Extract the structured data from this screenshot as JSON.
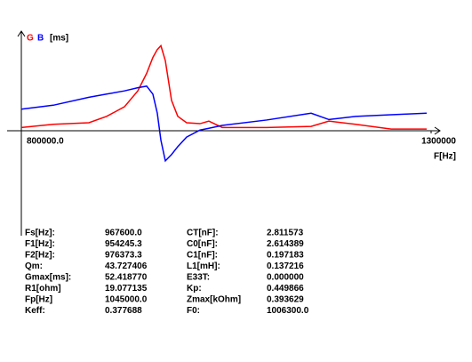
{
  "chart_data": {
    "type": "line",
    "y_label": "[ms]",
    "x_label": "F[Hz]",
    "x": [
      800000,
      839000,
      882400,
      904100,
      925800,
      942100,
      952900,
      960500,
      965900,
      970300,
      975700,
      983300,
      990900,
      1001700,
      1018000,
      1028800,
      1045100,
      1099300,
      1153600,
      1175300,
      1207800,
      1251200,
      1294600
    ],
    "series": [
      {
        "name": "G",
        "color": "#ff0000",
        "values": [
          1,
          3,
          4,
          8,
          14,
          24,
          35,
          45,
          50,
          52.4,
          43,
          18,
          8,
          4,
          3.4,
          5,
          1,
          1,
          1.7,
          5,
          3,
          0,
          0
        ]
      },
      {
        "name": "B",
        "color": "#0000ff",
        "values": [
          12.5,
          15,
          20,
          22,
          24,
          26,
          27,
          22,
          10,
          -7,
          -20,
          -16,
          -11,
          -5,
          -0.6,
          0.5,
          2.3,
          5.7,
          10,
          6,
          8,
          9,
          10
        ]
      }
    ],
    "xlim": [
      800000,
      1300000
    ],
    "xticks": [
      {
        "value": 800000,
        "label": "800000.0"
      },
      1300000
    ],
    "ylim": [
      -67,
      61
    ]
  },
  "table": {
    "rows": [
      [
        "Fs[Hz]:",
        "967600.0",
        "CT[nF]:",
        "2.811573"
      ],
      [
        "F1[Hz]:",
        "954245.3",
        "C0[nF]:",
        "2.614389"
      ],
      [
        "F2[Hz]:",
        "976373.3",
        "C1[nF]:",
        "0.197183"
      ],
      [
        "Qm:",
        "43.727406",
        "L1[mH]:",
        "0.137216"
      ],
      [
        "Gmax[ms]:",
        "52.418770",
        "E33T:",
        "0.000000"
      ],
      [
        "R1[ohm]",
        "19.077135",
        "Kp:",
        "0.449866"
      ],
      [
        "Fp[Hz]",
        "1045000.0",
        "Zmax[kOhm]",
        "0.393629"
      ],
      [
        "Keff:",
        "0.377688",
        "F0:",
        "1006300.0"
      ]
    ]
  }
}
